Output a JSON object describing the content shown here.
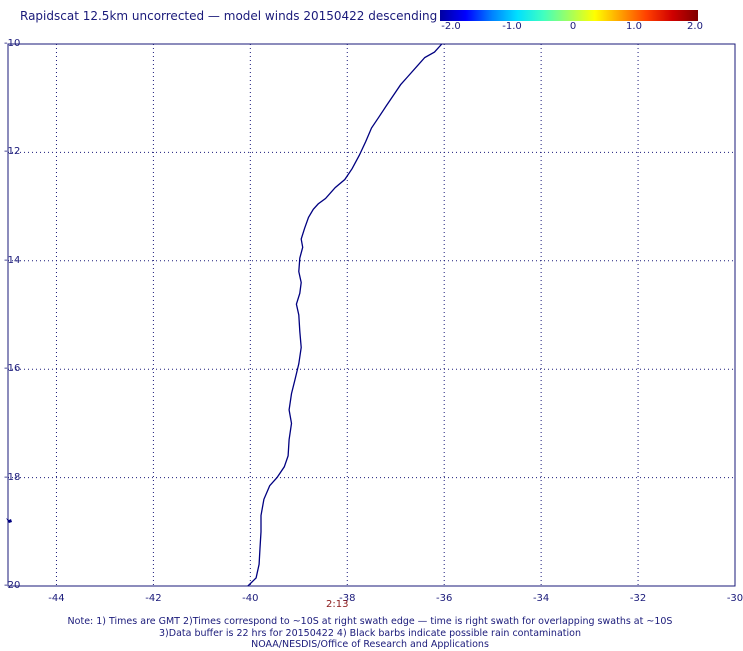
{
  "title": "Rapidscat 12.5km uncorrected — model winds 20150422 descending",
  "colorbar": {
    "ticks": [
      "-2.0",
      "-1.0",
      "0",
      "1.0",
      "2.0"
    ],
    "range": [
      -2.0,
      2.0
    ],
    "colors": [
      "#0000a0",
      "#0000ff",
      "#0080ff",
      "#00e0ff",
      "#40ffc0",
      "#a0ff60",
      "#ffff00",
      "#ffa000",
      "#ff4000",
      "#d00000",
      "#800000"
    ]
  },
  "map": {
    "lon_range": [
      -45,
      -30
    ],
    "lat_range": [
      -20,
      -10
    ],
    "lat_labels": [
      "-10",
      "-12",
      "-14",
      "-16",
      "-18",
      "-20"
    ],
    "lat_values": [
      -10,
      -12,
      -14,
      -16,
      -18,
      -20
    ],
    "lon_labels": [
      "-44",
      "-42",
      "-40",
      "-38",
      "-36",
      "-34",
      "-32",
      "-30"
    ],
    "lon_values": [
      -44,
      -42,
      -40,
      -38,
      -36,
      -34,
      -32,
      -30
    ],
    "grid": "dotted",
    "coastline_color": "#000080"
  },
  "swath_time": "2:13",
  "notes": [
    "Note: 1) Times are GMT 2)Times correspond to ~10S at right swath edge — time is right swath for overlapping swaths at ~10S",
    "3)Data buffer is 22 hrs for 20150422 4) Black barbs indicate possible rain contamination",
    "NOAA/NESDIS/Office of Research and Applications"
  ]
}
